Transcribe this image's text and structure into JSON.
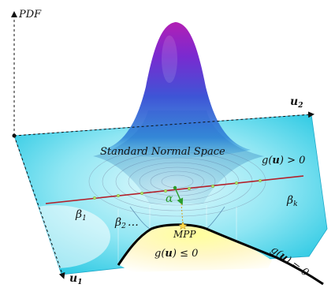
{
  "axes": {
    "vertical": "PDF",
    "u1": "u",
    "u1_sub": "1",
    "u2": "u",
    "u2_sub": "2"
  },
  "labels": {
    "space": "Standard Normal Space",
    "g_pos_fn": "g(",
    "g_pos_u": "u",
    "g_pos_rest": ") > 0",
    "g_neg_fn": "g(",
    "g_neg_u": "u",
    "g_neg_rest": ") ≤ 0",
    "g_eq_fn": "g(",
    "g_eq_u": "u",
    "g_eq_rest": ") = 0",
    "beta1": "β",
    "beta1_sub": "1",
    "beta2": "β",
    "beta2_sub": "2",
    "beta2_dots": "…",
    "betak": "β",
    "betak_sub": "k",
    "alpha": "α",
    "mpp": "MPP"
  },
  "colors": {
    "plane_edge": "#2fd0e8",
    "plane_center": "#dff7fb",
    "bell_top": "#8a1fb0",
    "bell_mid": "#4b3bd0",
    "bell_base": "#1e6fd8",
    "limit_state": "#000000",
    "hyperplane": "#b3202a",
    "failure_region": "#fff2a8",
    "marker": "#a8e05a",
    "alpha": "#2a9d2a"
  }
}
